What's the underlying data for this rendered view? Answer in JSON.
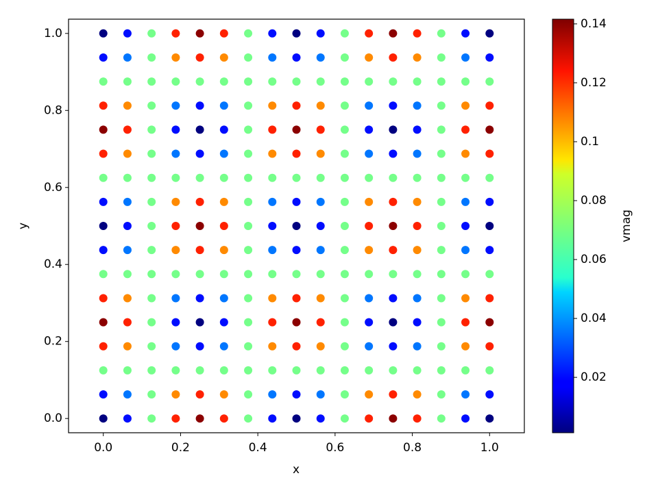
{
  "chart_data": {
    "type": "scatter",
    "colormap": "jet",
    "x_label": "x",
    "y_label": "y",
    "colorbar_label": "vmag",
    "x": [
      0,
      0.0625,
      0.125,
      0.1875,
      0.25,
      0.3125,
      0.375,
      0.4375,
      0.5,
      0.5625,
      0.625,
      0.6875,
      0.75,
      0.8125,
      0.875,
      0.9375,
      1
    ],
    "y": [
      0,
      0.0625,
      0.125,
      0.1875,
      0.25,
      0.3125,
      0.375,
      0.4375,
      0.5,
      0.5625,
      0.625,
      0.6875,
      0.75,
      0.8125,
      0.875,
      0.9375,
      1
    ],
    "values": [
      [
        0,
        0.0205,
        0.07,
        0.1195,
        0.14,
        0.1195,
        0.07,
        0.0205,
        0,
        0.0205,
        0.07,
        0.1195,
        0.14,
        0.1195,
        0.07,
        0.0205,
        0
      ],
      [
        0.0205,
        0.035,
        0.07,
        0.105,
        0.1195,
        0.105,
        0.07,
        0.035,
        0.0205,
        0.035,
        0.07,
        0.105,
        0.1195,
        0.105,
        0.07,
        0.035,
        0.0205
      ],
      [
        0.07,
        0.07,
        0.07,
        0.07,
        0.07,
        0.07,
        0.07,
        0.07,
        0.07,
        0.07,
        0.07,
        0.07,
        0.07,
        0.07,
        0.07,
        0.07,
        0.07
      ],
      [
        0.1195,
        0.105,
        0.07,
        0.035,
        0.0205,
        0.035,
        0.07,
        0.105,
        0.1195,
        0.105,
        0.07,
        0.035,
        0.0205,
        0.035,
        0.07,
        0.105,
        0.1195
      ],
      [
        0.14,
        0.1195,
        0.07,
        0.0205,
        0,
        0.0205,
        0.07,
        0.1195,
        0.14,
        0.1195,
        0.07,
        0.0205,
        0,
        0.0205,
        0.07,
        0.1195,
        0.14
      ],
      [
        0.1195,
        0.105,
        0.07,
        0.035,
        0.0205,
        0.035,
        0.07,
        0.105,
        0.1195,
        0.105,
        0.07,
        0.035,
        0.0205,
        0.035,
        0.07,
        0.105,
        0.1195
      ],
      [
        0.07,
        0.07,
        0.07,
        0.07,
        0.07,
        0.07,
        0.07,
        0.07,
        0.07,
        0.07,
        0.07,
        0.07,
        0.07,
        0.07,
        0.07,
        0.07,
        0.07
      ],
      [
        0.0205,
        0.035,
        0.07,
        0.105,
        0.1195,
        0.105,
        0.07,
        0.035,
        0.0205,
        0.035,
        0.07,
        0.105,
        0.1195,
        0.105,
        0.07,
        0.035,
        0.0205
      ],
      [
        0,
        0.0205,
        0.07,
        0.1195,
        0.14,
        0.1195,
        0.07,
        0.0205,
        0,
        0.0205,
        0.07,
        0.1195,
        0.14,
        0.1195,
        0.07,
        0.0205,
        0
      ],
      [
        0.0205,
        0.035,
        0.07,
        0.105,
        0.1195,
        0.105,
        0.07,
        0.035,
        0.0205,
        0.035,
        0.07,
        0.105,
        0.1195,
        0.105,
        0.07,
        0.035,
        0.0205
      ],
      [
        0.07,
        0.07,
        0.07,
        0.07,
        0.07,
        0.07,
        0.07,
        0.07,
        0.07,
        0.07,
        0.07,
        0.07,
        0.07,
        0.07,
        0.07,
        0.07,
        0.07
      ],
      [
        0.1195,
        0.105,
        0.07,
        0.035,
        0.0205,
        0.035,
        0.07,
        0.105,
        0.1195,
        0.105,
        0.07,
        0.035,
        0.0205,
        0.035,
        0.07,
        0.105,
        0.1195
      ],
      [
        0.14,
        0.1195,
        0.07,
        0.0205,
        0,
        0.0205,
        0.07,
        0.1195,
        0.14,
        0.1195,
        0.07,
        0.0205,
        0,
        0.0205,
        0.07,
        0.1195,
        0.14
      ],
      [
        0.1195,
        0.105,
        0.07,
        0.035,
        0.0205,
        0.035,
        0.07,
        0.105,
        0.1195,
        0.105,
        0.07,
        0.035,
        0.0205,
        0.035,
        0.07,
        0.105,
        0.1195
      ],
      [
        0.07,
        0.07,
        0.07,
        0.07,
        0.07,
        0.07,
        0.07,
        0.07,
        0.07,
        0.07,
        0.07,
        0.07,
        0.07,
        0.07,
        0.07,
        0.07,
        0.07
      ],
      [
        0.0205,
        0.035,
        0.07,
        0.105,
        0.1195,
        0.105,
        0.07,
        0.035,
        0.0205,
        0.035,
        0.07,
        0.105,
        0.1195,
        0.105,
        0.07,
        0.035,
        0.0205
      ],
      [
        0,
        0.0205,
        0.07,
        0.1195,
        0.14,
        0.1195,
        0.07,
        0.0205,
        0,
        0.0205,
        0.07,
        0.1195,
        0.14,
        0.1195,
        0.07,
        0.0205,
        0
      ]
    ],
    "xlim": [
      -0.09,
      1.09
    ],
    "ylim": [
      -0.037,
      1.037
    ],
    "xticks": [
      {
        "value": 0,
        "label": "0.0"
      },
      0.2,
      0.4,
      0.6,
      0.8,
      {
        "value": 1,
        "label": "1.0"
      }
    ],
    "yticks": [
      {
        "value": 0,
        "label": "0.0"
      },
      0.2,
      0.4,
      0.6,
      0.8,
      {
        "value": 1,
        "label": "1.0"
      }
    ],
    "clim": [
      0.0012,
      0.1416
    ],
    "cticks": [
      0.02,
      0.04,
      0.06,
      0.08,
      0.1,
      0.12,
      0.14
    ]
  }
}
